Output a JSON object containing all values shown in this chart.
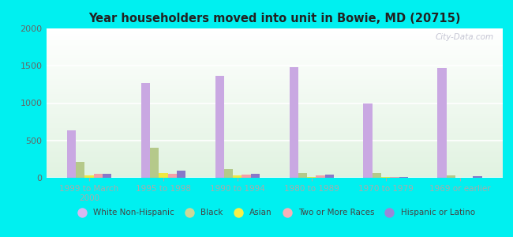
{
  "title": "Year householders moved into unit in Bowie, MD (20715)",
  "categories": [
    "1999 to March\n2000",
    "1995 to 1998",
    "1990 to 1994",
    "1980 to 1989",
    "1970 to 1979",
    "1969 or earlier"
  ],
  "series": {
    "White Non-Hispanic": [
      640,
      1270,
      1360,
      1480,
      1000,
      1470
    ],
    "Black": [
      210,
      400,
      120,
      60,
      60,
      30
    ],
    "Asian": [
      30,
      60,
      30,
      15,
      15,
      0
    ],
    "Two or More Races": [
      50,
      55,
      40,
      30,
      10,
      0
    ],
    "Hispanic or Latino": [
      55,
      100,
      55,
      40,
      10,
      20
    ]
  },
  "colors": {
    "White Non-Hispanic": "#c9a8e2",
    "Black": "#b5c98a",
    "Asian": "#f0e840",
    "Two or More Races": "#f4a0a8",
    "Hispanic or Latino": "#8878c8"
  },
  "legend_colors": {
    "White Non-Hispanic": "#d8b8f0",
    "Black": "#ccd898",
    "Asian": "#f8f048",
    "Two or More Races": "#f8b0b8",
    "Hispanic or Latino": "#9888d8"
  },
  "ylim": [
    0,
    2000
  ],
  "yticks": [
    0,
    500,
    1000,
    1500,
    2000
  ],
  "background_color": "#00f0f0",
  "watermark": "City-Data.com",
  "bar_width": 0.12
}
